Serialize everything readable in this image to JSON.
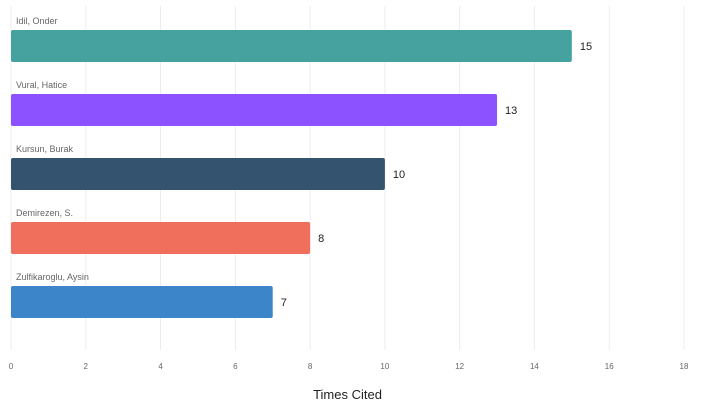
{
  "chart_data": {
    "type": "bar",
    "orientation": "horizontal",
    "categories": [
      "Idil, Onder",
      "Vural, Hatice",
      "Kursun, Burak",
      "Demirezen, S.",
      "Zulfikaroglu, Aysin"
    ],
    "values": [
      15,
      13,
      10,
      8,
      7
    ],
    "colors": [
      "#45a29e",
      "#8c52ff",
      "#34536e",
      "#ef6f5c",
      "#3d85c9"
    ],
    "xlabel": "Times Cited",
    "ylabel": "",
    "xlim": [
      0,
      18
    ],
    "xticks": [
      "0",
      "2",
      "4",
      "6",
      "8",
      "10",
      "12",
      "14",
      "16",
      "18"
    ],
    "grid": "vertical",
    "legend": "none"
  }
}
